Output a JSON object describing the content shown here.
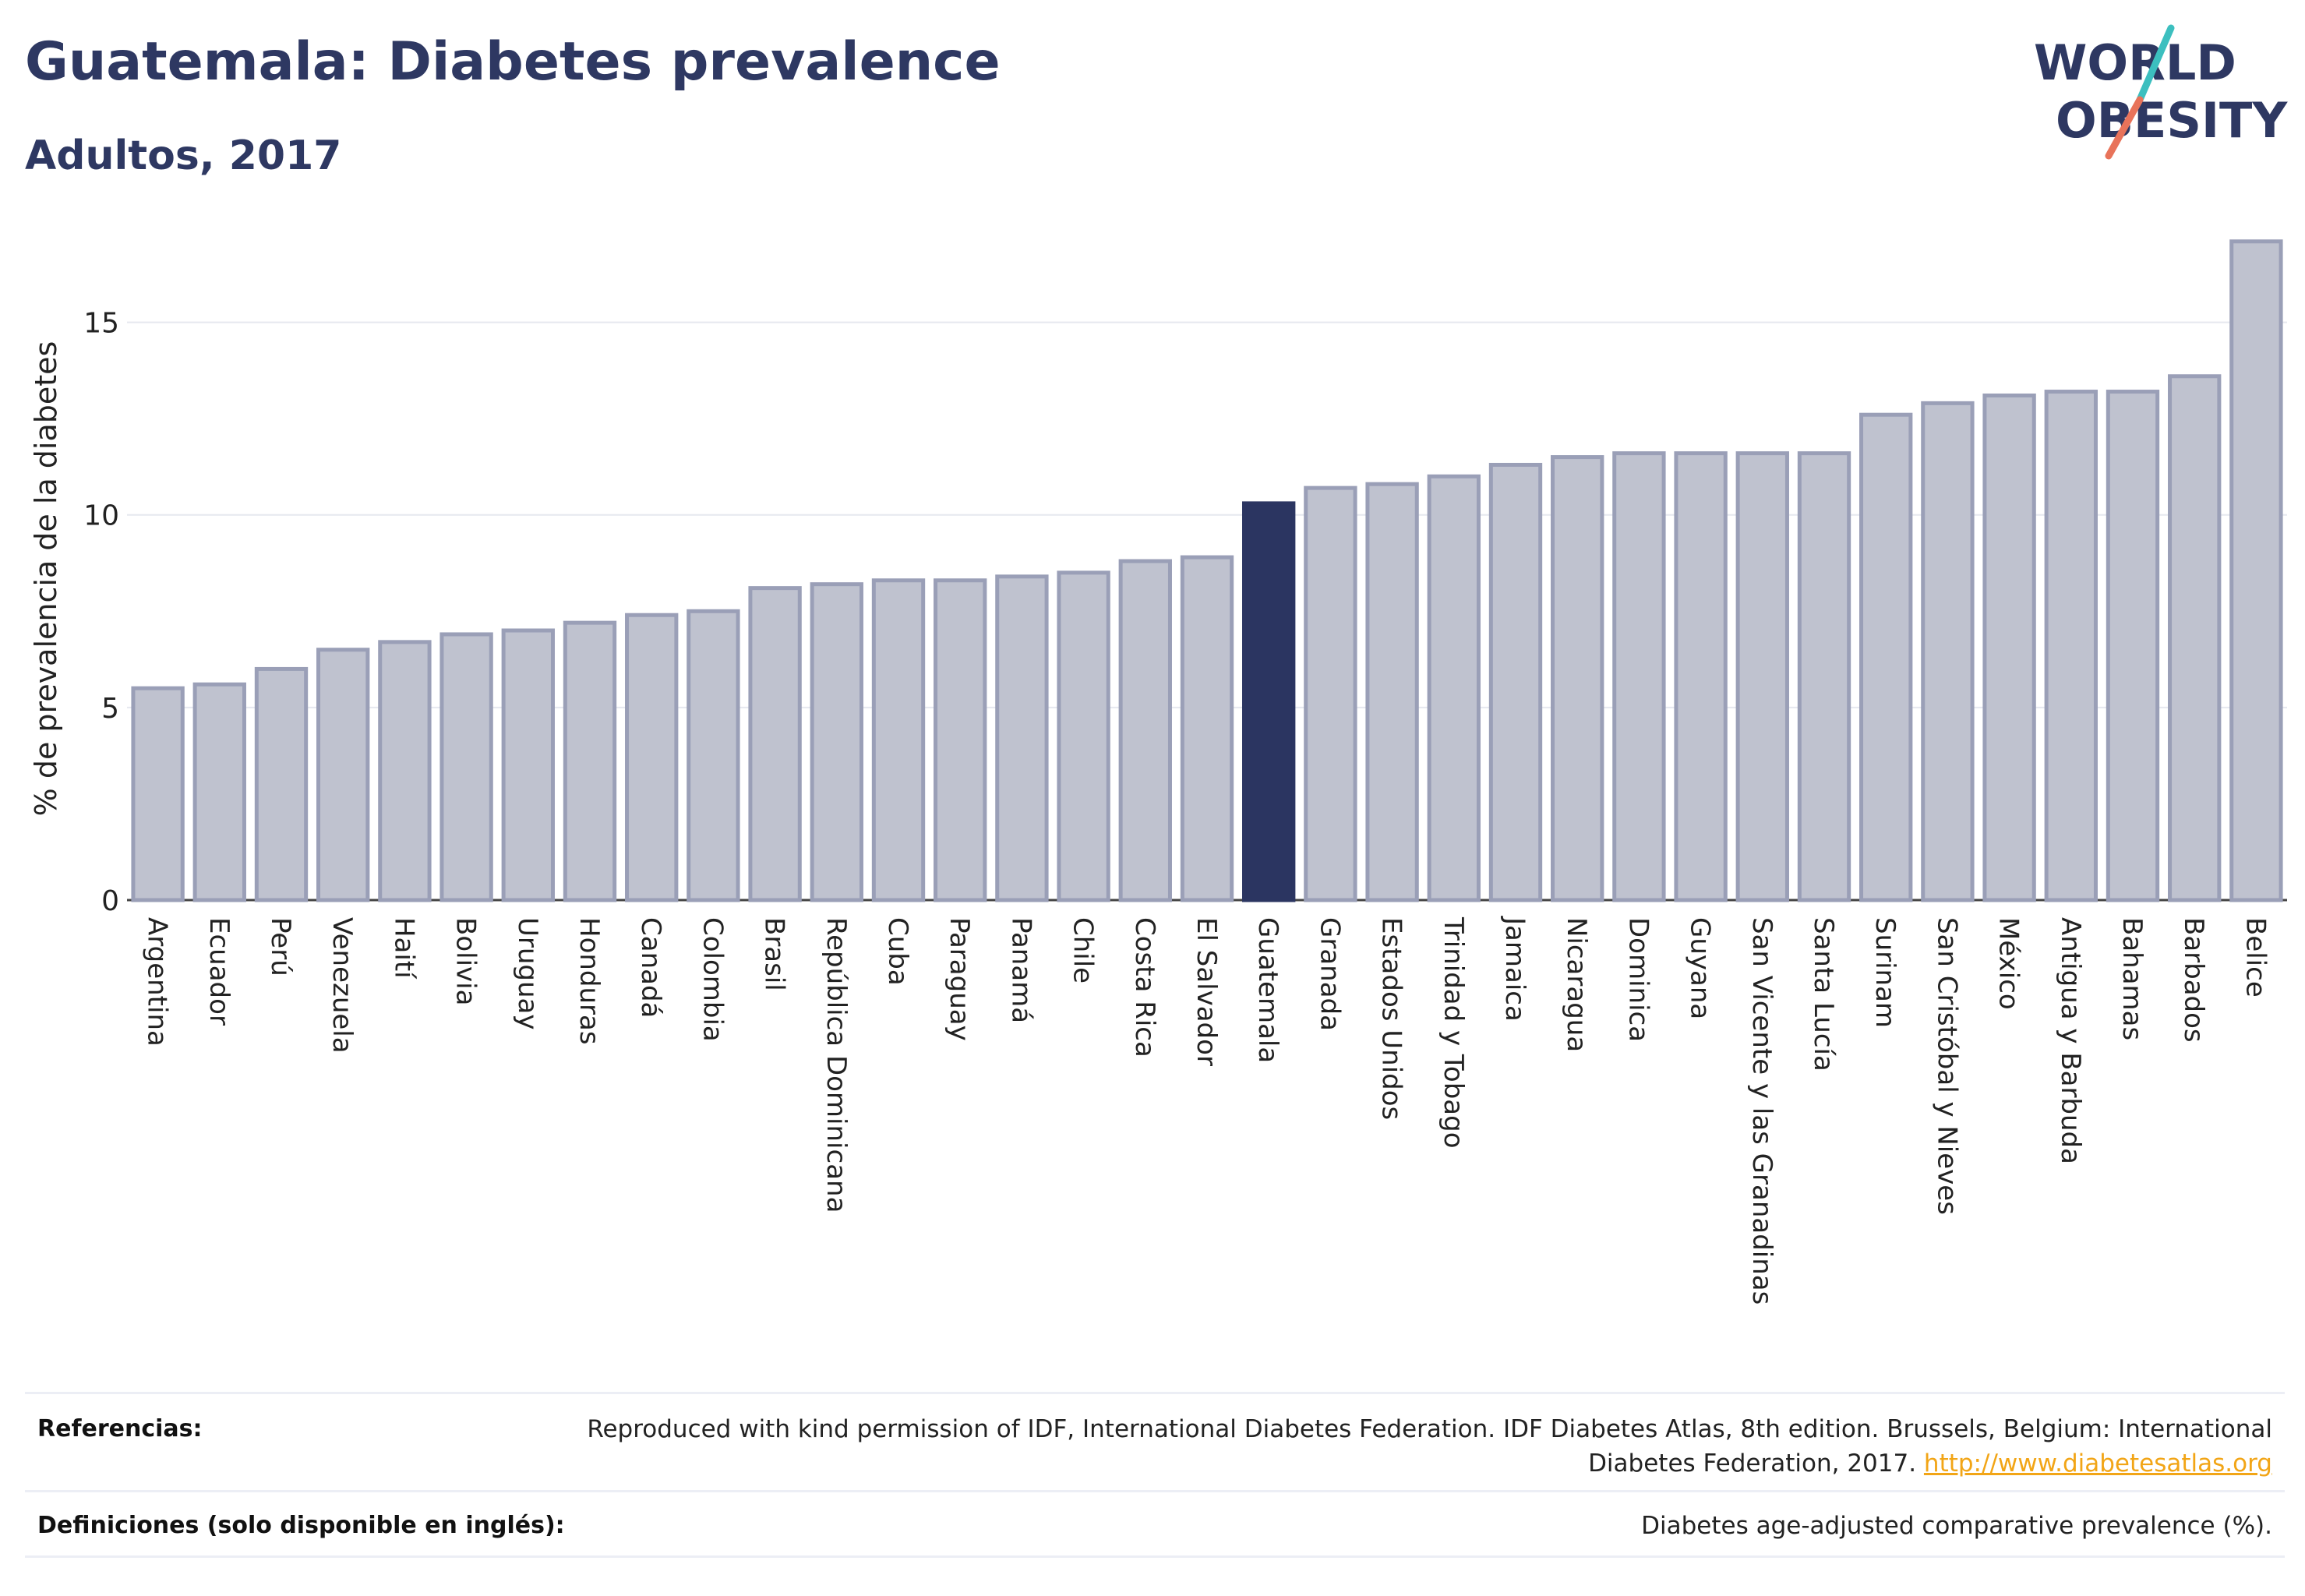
{
  "header": {
    "title": "Guatemala: Diabetes prevalence",
    "subtitle": "Adultos, 2017"
  },
  "logo": {
    "line1": "WORLD",
    "line2": "OBESITY",
    "accent_colors": [
      "#3cbfbf",
      "#e8735a"
    ],
    "text_color": "#2e3862"
  },
  "colors": {
    "highlight_bar": "#2b3561",
    "default_bar_fill": "#bfc2cf",
    "default_bar_stroke": "#9a9fb7",
    "gridline": "#e6e8ef"
  },
  "chart_data": {
    "type": "bar",
    "ylabel": "% de prevalencia de la diabetes",
    "xlabel": "",
    "ylim": [
      0,
      17.5
    ],
    "yticks": [
      0,
      5,
      10,
      15
    ],
    "grid": true,
    "highlight": "Guatemala",
    "categories": [
      "Argentina",
      "Ecuador",
      "Perú",
      "Venezuela",
      "Haití",
      "Bolivia",
      "Uruguay",
      "Honduras",
      "Canadá",
      "Colombia",
      "Brasil",
      "República Dominicana",
      "Cuba",
      "Paraguay",
      "Panamá",
      "Chile",
      "Costa Rica",
      "El Salvador",
      "Guatemala",
      "Granada",
      "Estados Unidos",
      "Trinidad y Tobago",
      "Jamaica",
      "Nicaragua",
      "Dominica",
      "Guyana",
      "San Vicente y las Granadinas",
      "Santa Lucía",
      "Surinam",
      "San Cristóbal y Nieves",
      "México",
      "Antigua y Barbuda",
      "Bahamas",
      "Barbados",
      "Belice"
    ],
    "values": [
      5.5,
      5.6,
      6.0,
      6.5,
      6.7,
      6.9,
      7.0,
      7.2,
      7.4,
      7.5,
      8.1,
      8.2,
      8.3,
      8.3,
      8.4,
      8.5,
      8.8,
      8.9,
      10.3,
      10.7,
      10.8,
      11.0,
      11.3,
      11.5,
      11.6,
      11.6,
      11.6,
      11.6,
      12.6,
      12.9,
      13.1,
      13.2,
      13.2,
      13.6,
      17.1
    ]
  },
  "footer": {
    "references_label": "Referencias:",
    "references_text": "Reproduced with kind permission of IDF, International Diabetes Federation. IDF Diabetes Atlas, 8th edition. Brussels, Belgium: International Diabetes Federation, 2017.",
    "references_link": "http://www.diabetesatlas.org",
    "definitions_label": "Definiciones (solo disponible en inglés):",
    "definitions_text": "Diabetes age-adjusted comparative prevalence (%)."
  }
}
